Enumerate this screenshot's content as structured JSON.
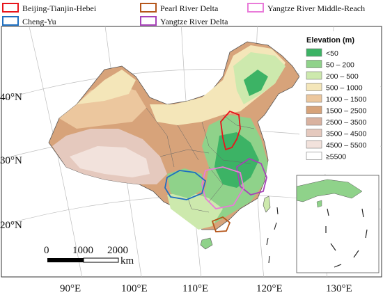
{
  "regions_legend": [
    {
      "label": "Beijing-Tianjin-Hebei",
      "color": "#e8141b"
    },
    {
      "label": "Pearl River Delta",
      "color": "#b5561a"
    },
    {
      "label": "Yangtze River Middle-Reach",
      "color": "#e97bd9"
    },
    {
      "label": "Cheng-Yu",
      "color": "#1f6fc0"
    },
    {
      "label": "Yangtze River Delta",
      "color": "#a642b8"
    }
  ],
  "elevation_legend": {
    "title": "Elevation (m)",
    "items": [
      {
        "label": "<50",
        "color": "#3cb365"
      },
      {
        "label": "50 – 200",
        "color": "#8fd28a"
      },
      {
        "label": "200 – 500",
        "color": "#cde9ad"
      },
      {
        "label": "500 – 1000",
        "color": "#f4e6b9"
      },
      {
        "label": "1000 – 1500",
        "color": "#ecc79e"
      },
      {
        "label": "1500 – 2500",
        "color": "#d7a37a"
      },
      {
        "label": "2500 – 3500",
        "color": "#d9b2a0"
      },
      {
        "label": "3500 – 4500",
        "color": "#e5c9be"
      },
      {
        "label": "4500 – 5500",
        "color": "#f2e2dc"
      },
      {
        "label": "≥5500",
        "color": "#ffffff"
      }
    ]
  },
  "latitude_labels": [
    "40°N",
    "30°N",
    "20°N"
  ],
  "longitude_labels": [
    "90°E",
    "100°E",
    "110°E",
    "120°E",
    "130°E"
  ],
  "scale_bar": {
    "ticks": [
      "0",
      "1000",
      "2000"
    ],
    "unit": "km"
  }
}
